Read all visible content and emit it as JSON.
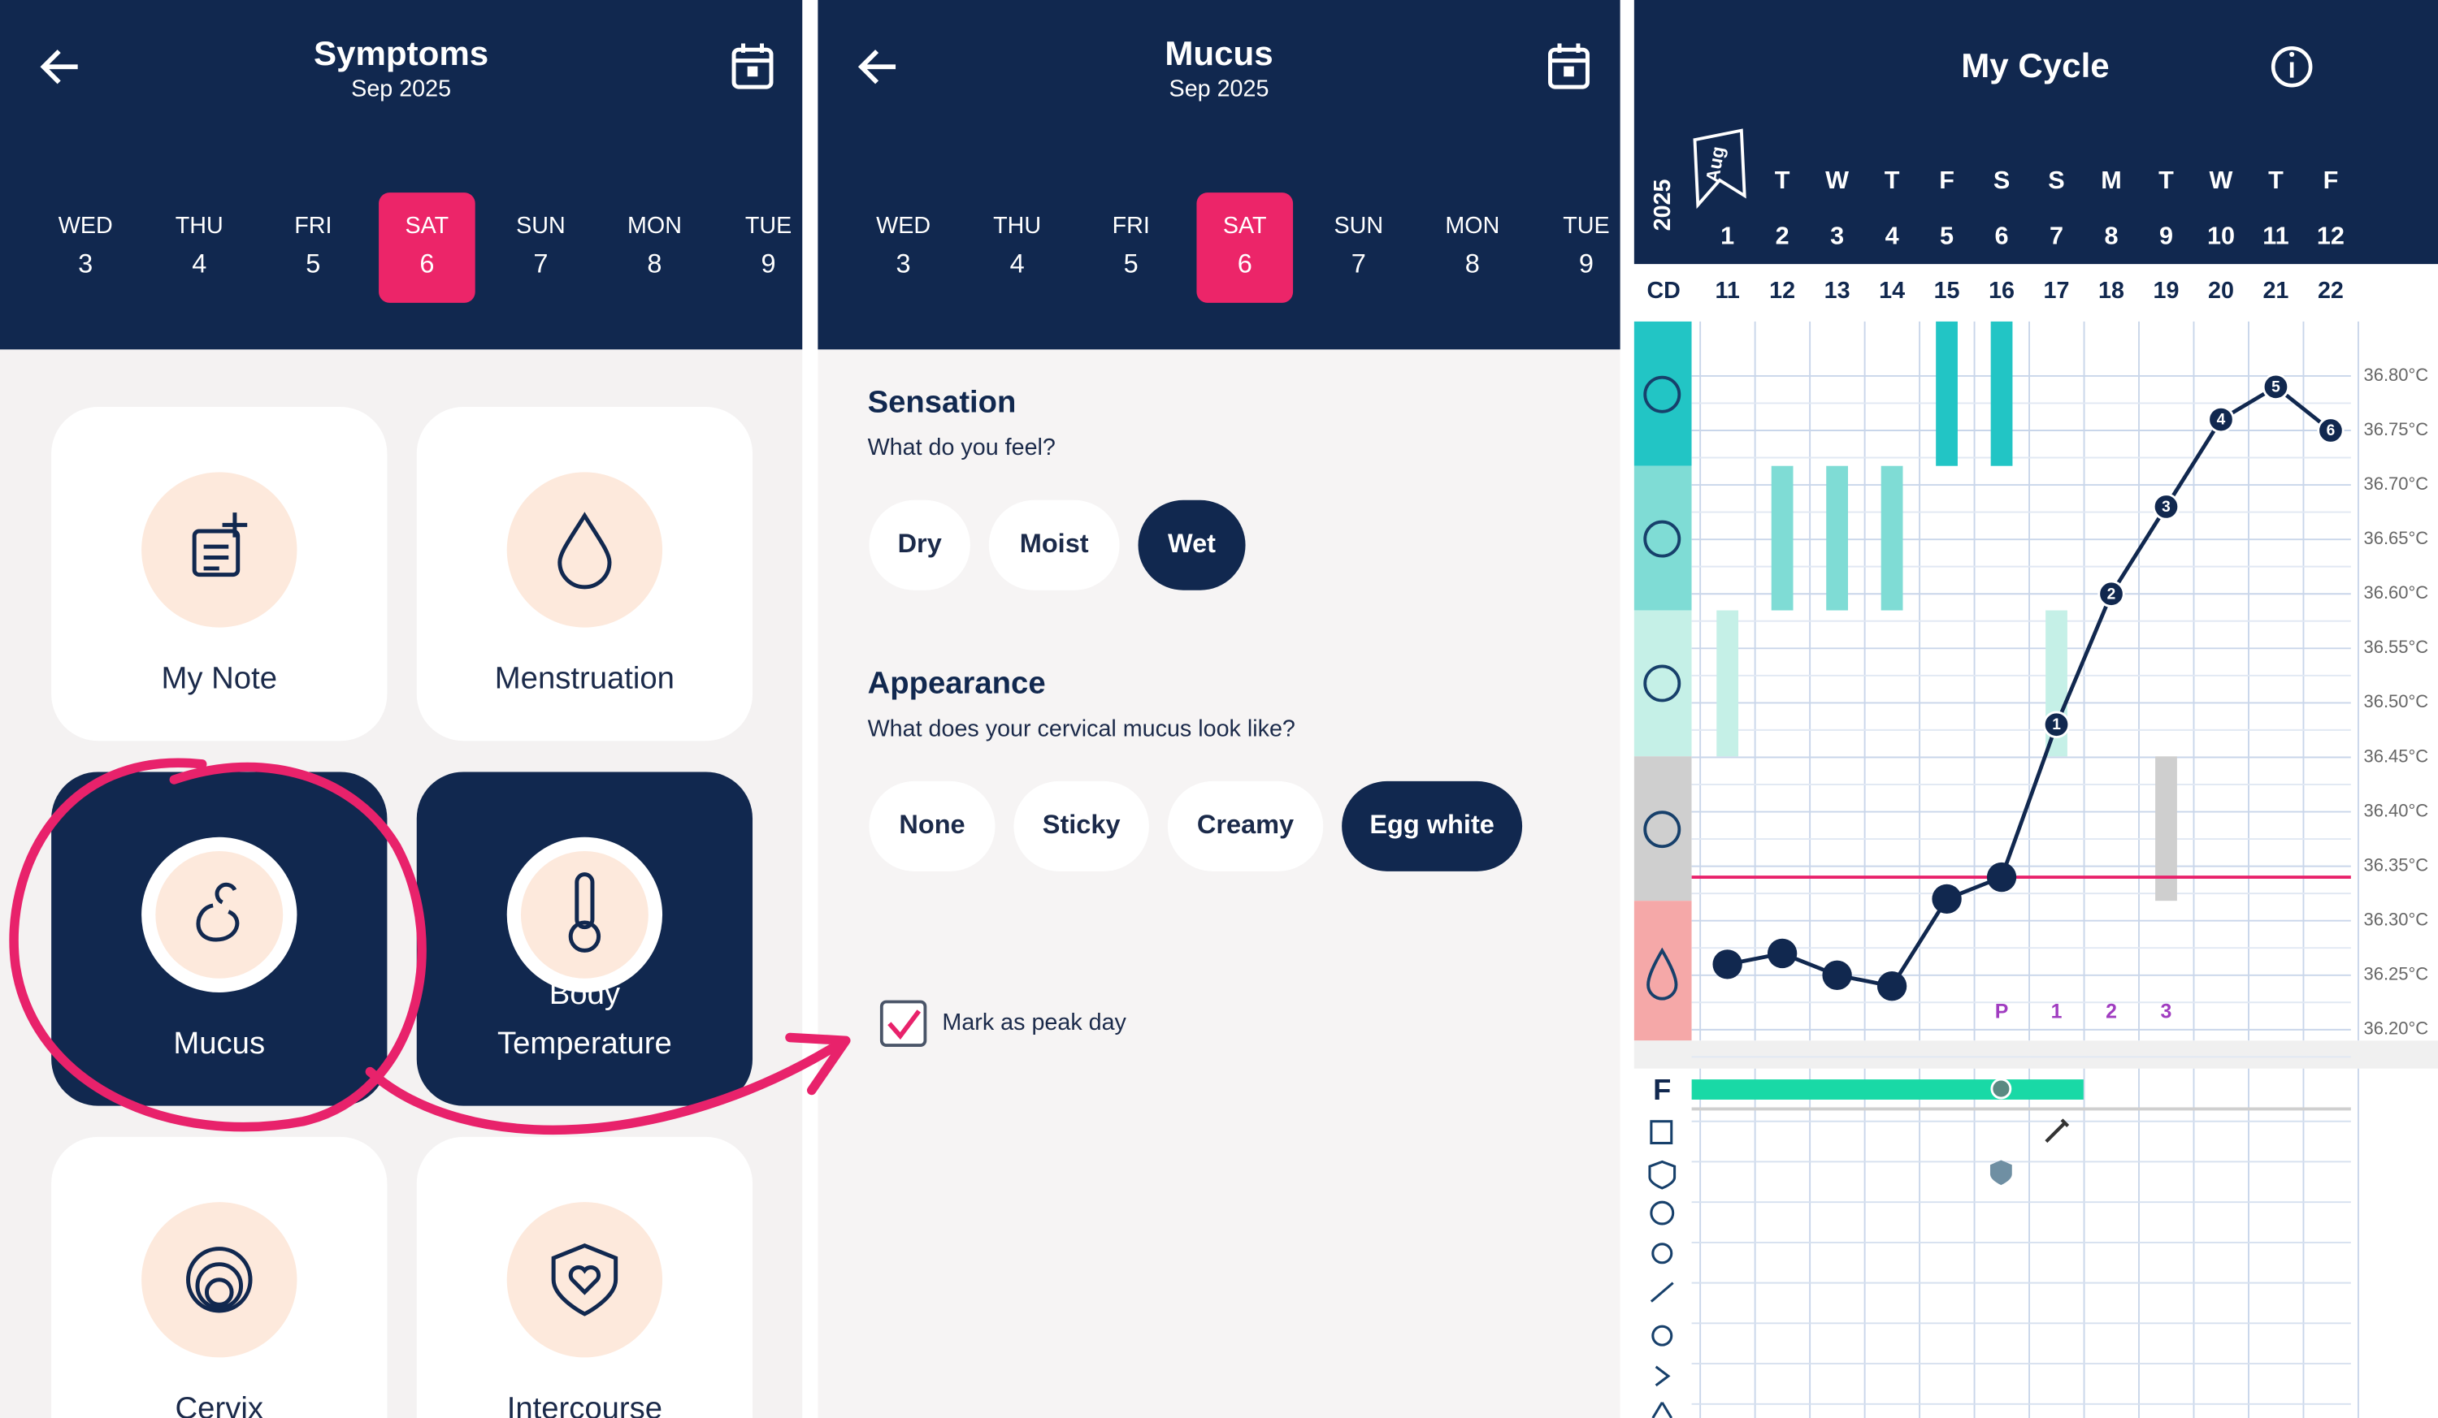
{
  "symptoms_screen": {
    "header": {
      "title": "Symptoms",
      "subtitle": "Sep 2025"
    },
    "days": [
      {
        "weekday": "WED",
        "day": "3"
      },
      {
        "weekday": "THU",
        "day": "4"
      },
      {
        "weekday": "FRI",
        "day": "5"
      },
      {
        "weekday": "SAT",
        "day": "6",
        "selected": true
      },
      {
        "weekday": "SUN",
        "day": "7"
      },
      {
        "weekday": "MON",
        "day": "8"
      },
      {
        "weekday": "TUE",
        "day": "9"
      }
    ],
    "tiles": [
      {
        "lines": [
          "My Note"
        ]
      },
      {
        "lines": [
          "Menstruation"
        ]
      },
      {
        "lines": [
          "Mucus"
        ],
        "active": true
      },
      {
        "lines": [
          "Body",
          "Temperature"
        ],
        "active": true
      },
      {
        "lines": [
          "Cervix"
        ]
      },
      {
        "lines": [
          "Intercourse"
        ]
      }
    ]
  },
  "mucus_screen": {
    "header": {
      "title": "Mucus",
      "subtitle": "Sep 2025"
    },
    "days": [
      {
        "weekday": "WED",
        "day": "3"
      },
      {
        "weekday": "THU",
        "day": "4"
      },
      {
        "weekday": "FRI",
        "day": "5"
      },
      {
        "weekday": "SAT",
        "day": "6",
        "selected": true
      },
      {
        "weekday": "SUN",
        "day": "7"
      },
      {
        "weekday": "MON",
        "day": "8"
      },
      {
        "weekday": "TUE",
        "day": "9"
      }
    ],
    "sections": [
      {
        "title": "Sensation",
        "question": "What do you feel?",
        "options": [
          {
            "label": "Dry"
          },
          {
            "label": "Moist"
          },
          {
            "label": "Wet",
            "selected": true
          }
        ]
      },
      {
        "title": "Appearance",
        "question": "What does your cervical mucus look like?",
        "options": [
          {
            "label": "None"
          },
          {
            "label": "Sticky"
          },
          {
            "label": "Creamy"
          },
          {
            "label": "Egg white",
            "selected": true
          }
        ]
      }
    ],
    "peak_checkbox": {
      "label": "Mark as peak day",
      "checked": true
    }
  },
  "cycle_screen": {
    "title": "My Cycle",
    "year": "2025",
    "month": "Aug",
    "cd_label": "CD",
    "fertile_label": "F",
    "weekdays": [
      null,
      "T",
      "W",
      "T",
      "F",
      "S",
      "S",
      "M",
      "T",
      "W",
      "T",
      "F"
    ],
    "dates": [
      1,
      2,
      3,
      4,
      5,
      6,
      7,
      8,
      9,
      10,
      11,
      12
    ],
    "cycle_days": [
      11,
      12,
      13,
      14,
      15,
      16,
      17,
      18,
      19,
      20,
      21,
      22
    ],
    "temperatures": [
      36.26,
      36.27,
      36.25,
      36.24,
      36.32,
      36.34,
      36.48,
      36.6,
      36.68,
      36.76,
      36.79,
      36.75
    ],
    "point_labels": [
      null,
      null,
      null,
      null,
      null,
      null,
      "1",
      "2",
      "3",
      "4",
      "5",
      "6"
    ],
    "day_markers": [
      null,
      null,
      null,
      null,
      null,
      "P",
      "1",
      "2",
      "3",
      null,
      null,
      null
    ],
    "mucus_band": [
      2,
      1,
      1,
      1,
      0,
      0,
      2,
      null,
      3,
      null,
      null,
      null
    ],
    "coverline": 36.34,
    "ylim": [
      36.19,
      36.85
    ],
    "yticks": [
      {
        "value": 36.2,
        "label": "36.20°C"
      },
      {
        "value": 36.25,
        "label": "36.25°C"
      },
      {
        "value": 36.3,
        "label": "36.30°C"
      },
      {
        "value": 36.35,
        "label": "36.35°C"
      },
      {
        "value": 36.4,
        "label": "36.40°C"
      },
      {
        "value": 36.45,
        "label": "36.45°C"
      },
      {
        "value": 36.5,
        "label": "36.50°C"
      },
      {
        "value": 36.55,
        "label": "36.55°C"
      },
      {
        "value": 36.6,
        "label": "36.60°C"
      },
      {
        "value": 36.65,
        "label": "36.65°C"
      },
      {
        "value": 36.7,
        "label": "36.70°C"
      },
      {
        "value": 36.75,
        "label": "36.75°C"
      },
      {
        "value": 36.8,
        "label": "36.80°C"
      }
    ]
  }
}
